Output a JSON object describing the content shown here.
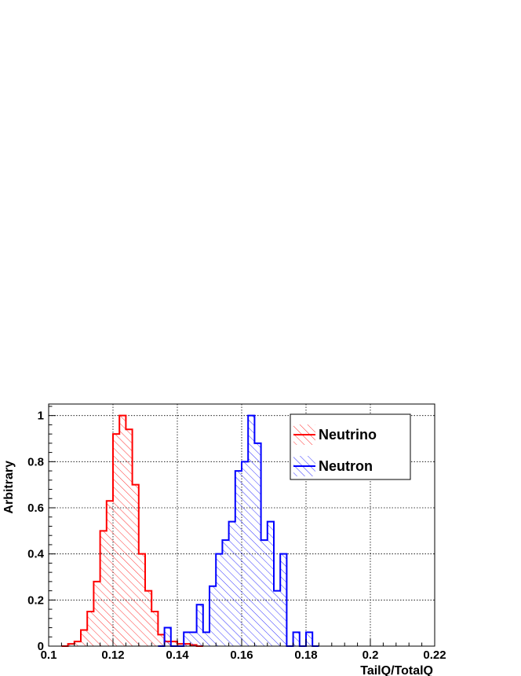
{
  "chart_data": {
    "type": "histogram",
    "xlabel": "TailQ/TotalQ",
    "ylabel": "Arbitrary",
    "xlim": [
      0.1,
      0.22
    ],
    "ylim": [
      0,
      1.05
    ],
    "xticks": [
      0.1,
      0.12,
      0.14,
      0.16,
      0.18,
      0.2,
      0.22
    ],
    "xtick_labels": [
      "0.1",
      "0.12",
      "0.14",
      "0.16",
      "0.18",
      "0.2",
      "0.22"
    ],
    "yticks": [
      0,
      0.2,
      0.4,
      0.6,
      0.8,
      1
    ],
    "ytick_labels": [
      "0",
      "0.2",
      "0.4",
      "0.6",
      "0.8",
      "1"
    ],
    "grid": true,
    "legend_position": "top-right",
    "bin_width": 0.002,
    "series": [
      {
        "name": "Neutrino",
        "color": "#ff0000",
        "hatch": "diagonal",
        "bin_starts": [
          0.104,
          0.106,
          0.108,
          0.11,
          0.112,
          0.114,
          0.116,
          0.118,
          0.12,
          0.122,
          0.124,
          0.126,
          0.128,
          0.13,
          0.132,
          0.134,
          0.136,
          0.138,
          0.14,
          0.142,
          0.144,
          0.146
        ],
        "values": [
          0.0,
          0.01,
          0.02,
          0.07,
          0.15,
          0.28,
          0.5,
          0.63,
          0.92,
          1.0,
          0.94,
          0.7,
          0.4,
          0.24,
          0.15,
          0.05,
          0.02,
          0.02,
          0.01,
          0.01,
          0.005,
          0.0
        ]
      },
      {
        "name": "Neutron",
        "color": "#0000ff",
        "hatch": "diagonal",
        "bin_starts": [
          0.134,
          0.136,
          0.138,
          0.14,
          0.142,
          0.144,
          0.146,
          0.148,
          0.15,
          0.152,
          0.154,
          0.156,
          0.158,
          0.16,
          0.162,
          0.164,
          0.166,
          0.168,
          0.17,
          0.172,
          0.174,
          0.176,
          0.178,
          0.18,
          0.182
        ],
        "values": [
          0.0,
          0.08,
          0.0,
          0.0,
          0.06,
          0.06,
          0.18,
          0.06,
          0.26,
          0.4,
          0.46,
          0.54,
          0.76,
          0.8,
          1.0,
          0.88,
          0.46,
          0.54,
          0.24,
          0.4,
          0.0,
          0.06,
          0.0,
          0.06,
          0.0
        ]
      }
    ]
  }
}
